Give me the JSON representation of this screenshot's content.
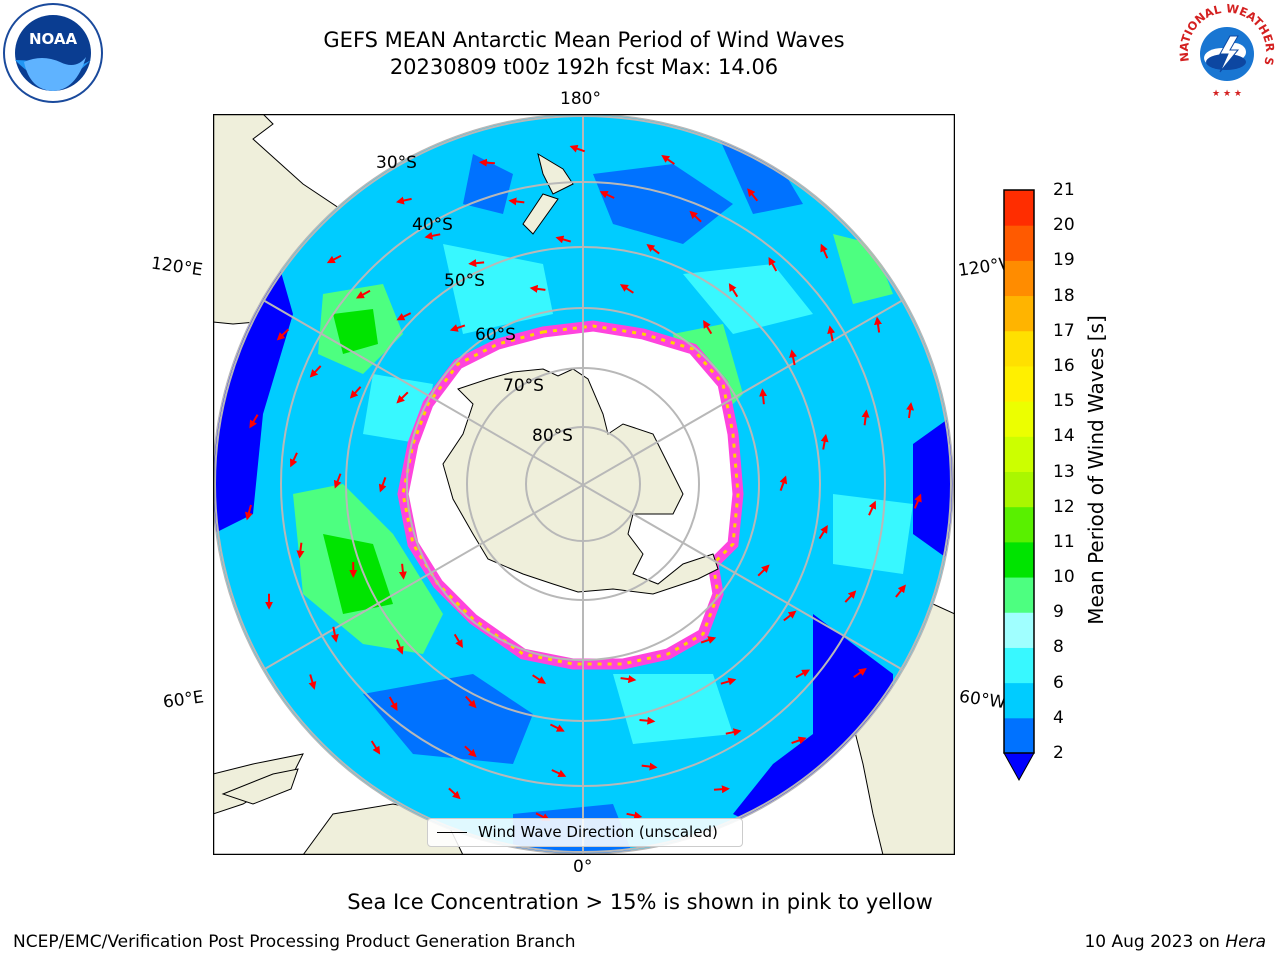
{
  "title_line1": "GEFS MEAN Antarctic Mean Period of Wind Waves",
  "title_line2": "20230809 t00z 192h fcst   Max: 14.06",
  "logos": {
    "left": "noaa-logo",
    "left_text": "NOAA",
    "right": "national-weather-service-logo",
    "right_text": "NATIONAL WEATHER SERVICE"
  },
  "longitude_labels": {
    "top": "180°",
    "bottom": "0°",
    "upper_left": "120°E",
    "upper_right": "120°W",
    "lower_left": "60°E",
    "lower_right": "60°W"
  },
  "latitude_labels": [
    "30°S",
    "40°S",
    "50°S",
    "60°S",
    "70°S",
    "80°S"
  ],
  "legend": {
    "label": "Wind Wave Direction (unscaled)"
  },
  "colorbar": {
    "title": "Mean Period of Wind Waves [s]",
    "ticks": [
      "2",
      "4",
      "6",
      "8",
      "9",
      "10",
      "11",
      "12",
      "13",
      "14",
      "15",
      "16",
      "17",
      "18",
      "19",
      "20",
      "21"
    ],
    "colors": [
      "#0072ff",
      "#00ccff",
      "#38f8ff",
      "#a0ffff",
      "#4dff80",
      "#00e400",
      "#59f000",
      "#aaf700",
      "#ccff00",
      "#ecff00",
      "#fff000",
      "#ffe000",
      "#ffb400",
      "#ff8c00",
      "#ff5a00",
      "#ff2d00",
      "#ff0000"
    ],
    "under_color": "#0000ff"
  },
  "colors": {
    "land": "#efefdb",
    "deep_blue": "#0000ff",
    "blue": "#0072ff",
    "cyan": "#00ccff",
    "light_cyan": "#38f8ff",
    "green": "#4dff80",
    "bright_green": "#00e400",
    "ice_pink": "#ff44dd",
    "ice_yellow": "#ffd400",
    "arrow": "#ff0000",
    "grid": "#b8b8b8"
  },
  "sea_ice_note": "Sea Ice Concentration > 15% is shown in pink to yellow",
  "footer_left": "NCEP/EMC/Verification Post Processing Product Generation Branch",
  "footer_date": "10 Aug 2023 on",
  "footer_machine": "Hera"
}
